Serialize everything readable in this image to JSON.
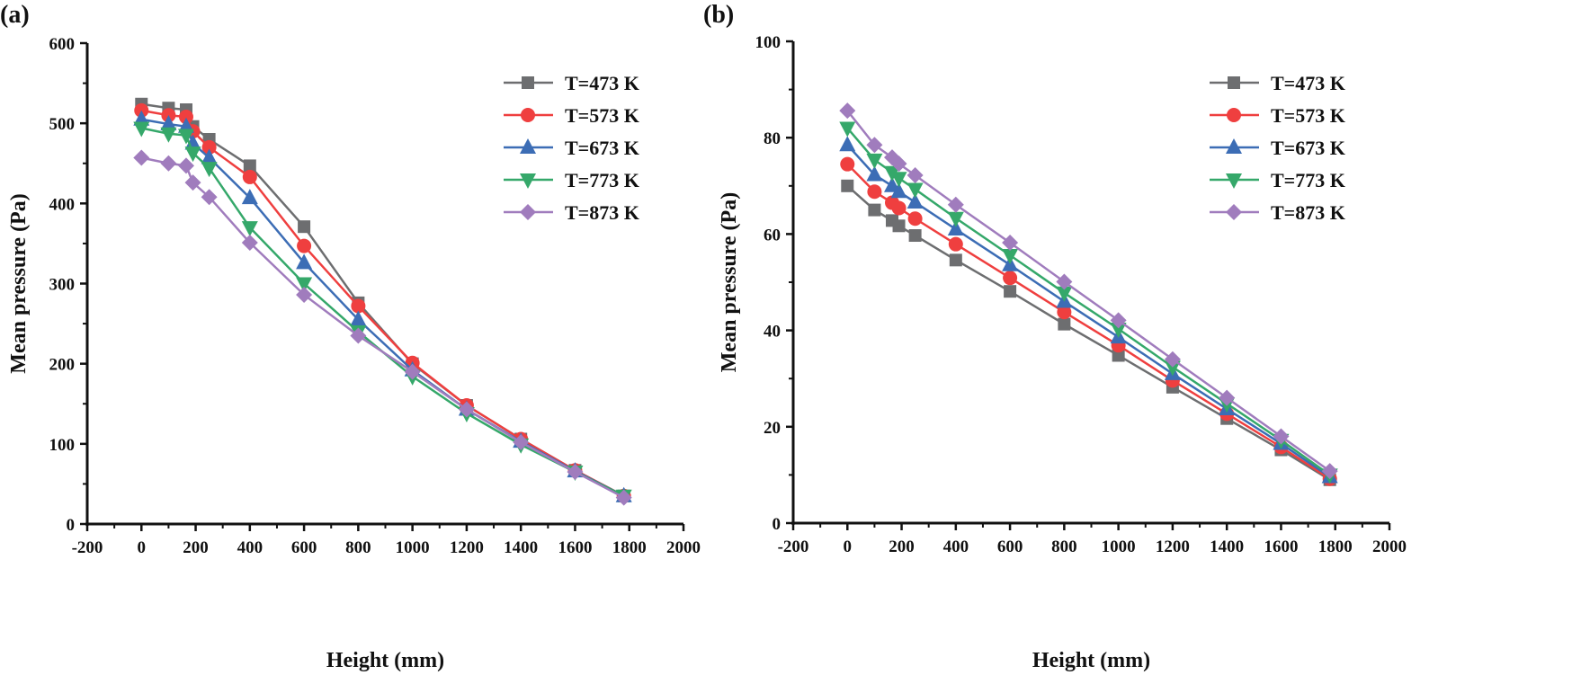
{
  "chart_data": [
    {
      "type": "line",
      "panel_label": "(a)",
      "xlabel": "Height (mm)",
      "ylabel": "Mean pressure (Pa)",
      "xlim": [
        -200,
        2000
      ],
      "ylim": [
        0,
        600
      ],
      "xticks": [
        -200,
        0,
        200,
        400,
        600,
        800,
        1000,
        1200,
        1400,
        1600,
        1800,
        2000
      ],
      "yticks": [
        0,
        100,
        200,
        300,
        400,
        500,
        600
      ],
      "legend_position": "top-right",
      "x": [
        0,
        100,
        165,
        190,
        250,
        400,
        600,
        800,
        1000,
        1200,
        1400,
        1600,
        1780
      ],
      "series": [
        {
          "name": "T=473 K",
          "color": "#6d6e70",
          "marker": "square",
          "values": [
            524,
            519,
            517,
            496,
            480,
            447,
            371,
            276,
            200,
            148,
            106,
            67,
            35
          ]
        },
        {
          "name": "T=573 K",
          "color": "#ef3f3f",
          "marker": "circle",
          "values": [
            516,
            510,
            508,
            490,
            470,
            433,
            347,
            272,
            201,
            148,
            106,
            67,
            35
          ]
        },
        {
          "name": "T=673 K",
          "color": "#3c6db5",
          "marker": "triangle-up",
          "values": [
            505,
            499,
            496,
            475,
            457,
            407,
            326,
            255,
            192,
            143,
            103,
            66,
            35
          ]
        },
        {
          "name": "T=773 K",
          "color": "#35a86a",
          "marker": "triangle-down",
          "values": [
            494,
            487,
            485,
            463,
            444,
            370,
            300,
            240,
            184,
            138,
            99,
            65,
            35
          ]
        },
        {
          "name": "T=873 K",
          "color": "#a07cbd",
          "marker": "diamond",
          "values": [
            457,
            450,
            447,
            426,
            408,
            351,
            286,
            235,
            190,
            143,
            102,
            65,
            33
          ]
        }
      ]
    },
    {
      "type": "line",
      "panel_label": "(b)",
      "xlabel": "Height (mm)",
      "ylabel": "Mean pressure (Pa)",
      "xlim": [
        -200,
        2000
      ],
      "ylim": [
        0,
        100
      ],
      "xticks": [
        -200,
        0,
        200,
        400,
        600,
        800,
        1000,
        1200,
        1400,
        1600,
        1800,
        2000
      ],
      "yticks": [
        0,
        20,
        40,
        60,
        80,
        100
      ],
      "legend_position": "top-right",
      "x": [
        0,
        100,
        165,
        190,
        250,
        400,
        600,
        800,
        1000,
        1200,
        1400,
        1600,
        1780
      ],
      "series": [
        {
          "name": "T=473 K",
          "color": "#6d6e70",
          "marker": "square",
          "values": [
            70,
            65,
            62.8,
            61.7,
            59.7,
            54.6,
            48.1,
            41.3,
            34.8,
            28.2,
            21.7,
            15.2,
            9
          ]
        },
        {
          "name": "T=573 K",
          "color": "#ef3f3f",
          "marker": "circle",
          "values": [
            74.5,
            68.8,
            66.5,
            65.4,
            63.2,
            57.9,
            50.9,
            43.8,
            36.9,
            29.6,
            22.7,
            15.8,
            9.2
          ]
        },
        {
          "name": "T=673 K",
          "color": "#3c6db5",
          "marker": "triangle-up",
          "values": [
            78.5,
            72.3,
            70,
            68.8,
            66.6,
            61,
            53.6,
            46,
            38.6,
            31,
            23.7,
            16.5,
            9.6
          ]
        },
        {
          "name": "T=773 K",
          "color": "#35a86a",
          "marker": "triangle-down",
          "values": [
            82,
            75.4,
            72.8,
            71.6,
            69.3,
            63.3,
            55.6,
            47.8,
            40.3,
            32.4,
            24.8,
            17.2,
            10
          ]
        },
        {
          "name": "T=873 K",
          "color": "#a07cbd",
          "marker": "diamond",
          "values": [
            85.6,
            78.5,
            75.9,
            74.6,
            72.2,
            66.1,
            58.2,
            50.1,
            42.1,
            34,
            26,
            18,
            10.8
          ]
        }
      ]
    }
  ]
}
